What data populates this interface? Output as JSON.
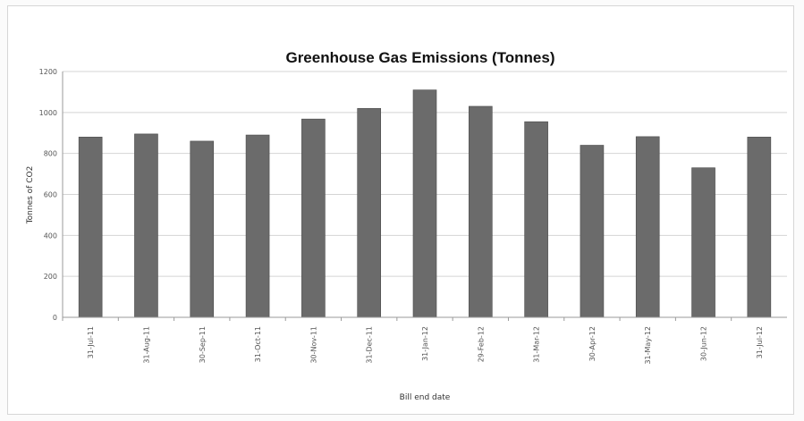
{
  "chart_data": {
    "type": "bar",
    "title": "Greenhouse Gas Emissions (Tonnes)",
    "xlabel": "Bill end date",
    "ylabel": "Tonnes of CO2",
    "categories": [
      "31-Jul-11",
      "31-Aug-11",
      "30-Sep-11",
      "31-Oct-11",
      "30-Nov-11",
      "31-Dec-11",
      "31-Jan-12",
      "29-Feb-12",
      "31-Mar-12",
      "30-Apr-12",
      "31-May-12",
      "30-Jun-12",
      "31-Jul-12"
    ],
    "values": [
      880,
      895,
      860,
      890,
      968,
      1020,
      1110,
      1030,
      955,
      840,
      882,
      730,
      880
    ],
    "ylim": [
      0,
      1200
    ],
    "yticks": [
      "0",
      "200",
      "400",
      "600",
      "800",
      "1000",
      "1200"
    ],
    "grid": true,
    "bar_color": "#6b6b6b"
  }
}
